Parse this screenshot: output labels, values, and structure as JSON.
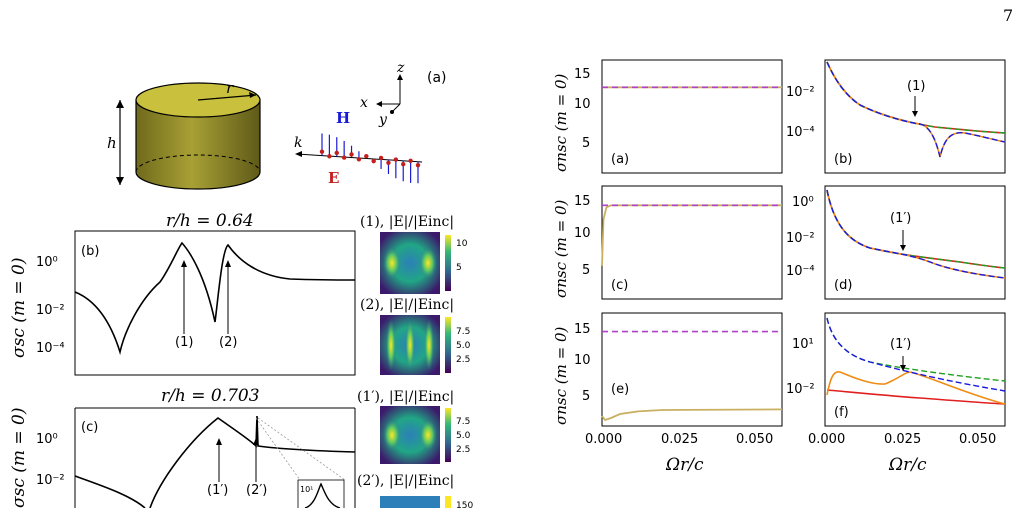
{
  "page": {
    "number": "7"
  },
  "figure_a": {
    "label": "(a)",
    "radius_label": "r",
    "height_label": "h",
    "axis_z": "z",
    "axis_x": "x",
    "axis_y": "y",
    "wave_k": "k",
    "field_H": "H",
    "field_E": "E",
    "colors": {
      "cylinder_top": "#c9c03d",
      "cylinder_side": "#8a8a2a",
      "H": "#1a1ad6",
      "E": "#c41e1e"
    }
  },
  "left_panels": {
    "panel_b_title": "r/h = 0.64",
    "panel_c_title": "r/h = 0.703",
    "ylabel": "σsc (m = 0)",
    "panel_b_label": "(b)",
    "panel_c_label": "(c)",
    "y_ticks": [
      "10⁰",
      "10⁻²",
      "10⁻⁴"
    ],
    "panel_b_markers": [
      "(1)",
      "(2)"
    ],
    "panel_c_markers": [
      "(1′)",
      "(2′)"
    ],
    "inset_tick": "10¹"
  },
  "field_maps": {
    "map1_title": "(1), |E|/|Einc|",
    "map2_title": "(2), |E|/|Einc|",
    "map1p_title": "(1′), |E|/|Einc|",
    "map2p_title": "(2′), |E|/|Einc|",
    "map1_ticks": [
      "10",
      "5"
    ],
    "map2_ticks": [
      "7.5",
      "5.0",
      "2.5"
    ],
    "map1p_ticks": [
      "7.5",
      "5.0",
      "2.5"
    ],
    "map2p_ticks": [
      "150"
    ]
  },
  "grid_panels": {
    "ylabel": "σnsc (m = 0)",
    "xlabel": "Ωr/c",
    "x_ticks": [
      "0.000",
      "0.025",
      "0.050"
    ],
    "linear_y_ticks": [
      "15",
      "10",
      "5"
    ],
    "panel_labels": [
      "(a)",
      "(b)",
      "(c)",
      "(d)",
      "(e)",
      "(f)"
    ],
    "marker_b": "(1)",
    "marker_d": "(1′)",
    "marker_f": "(1′)",
    "log_ticks_b": [
      "10⁻²",
      "10⁻⁴"
    ],
    "log_ticks_d": [
      "10⁰",
      "10⁻²",
      "10⁻⁴"
    ],
    "log_ticks_f": [
      "10¹",
      "10⁻²"
    ],
    "colors": {
      "purple": "#b040c8",
      "tan": "#c8b060",
      "red": "#e02020",
      "green": "#20a020",
      "orange": "#f08c14",
      "blue": "#1a1ae0"
    }
  },
  "chart_data": [
    {
      "type": "line",
      "panel": "(a)",
      "xlabel": "Ωr/c",
      "ylabel": "σnsc (m = 0)",
      "xlim": [
        0,
        0.06
      ],
      "ylim": [
        0,
        17
      ],
      "series": [
        {
          "values": [
            [
              0,
              12.9
            ],
            [
              0.06,
              12.9
            ]
          ],
          "color": "#c8b060"
        },
        {
          "values": [
            [
              0,
              12.9
            ],
            [
              0.06,
              12.9
            ]
          ],
          "color": "#b040c8",
          "dashed": true
        }
      ]
    },
    {
      "type": "line",
      "panel": "(c)",
      "xlabel": "Ωr/c",
      "ylabel": "σnsc (m = 0)",
      "xlim": [
        0,
        0.06
      ],
      "ylim": [
        0,
        17
      ],
      "series": [
        {
          "values": [
            [
              0,
              5
            ],
            [
              0.0005,
              12
            ],
            [
              0.0015,
              13.8
            ],
            [
              0.003,
              14.1
            ],
            [
              0.06,
              14.1
            ]
          ],
          "color": "#c8b060"
        },
        {
          "values": [
            [
              0,
              14.1
            ],
            [
              0.06,
              14.1
            ]
          ],
          "color": "#b040c8",
          "dashed": true
        }
      ]
    },
    {
      "type": "line",
      "panel": "(e)",
      "xlabel": "Ωr/c",
      "ylabel": "σnsc (m = 0)",
      "xlim": [
        0,
        0.06
      ],
      "ylim": [
        0,
        17
      ],
      "series": [
        {
          "values": [
            [
              0,
              1.5
            ],
            [
              0.001,
              0.9
            ],
            [
              0.003,
              1.2
            ],
            [
              0.006,
              1.8
            ],
            [
              0.012,
              2.2
            ],
            [
              0.02,
              2.4
            ],
            [
              0.06,
              2.5
            ]
          ],
          "color": "#c8b060"
        },
        {
          "values": [
            [
              0,
              14.2
            ],
            [
              0.06,
              14.2
            ]
          ],
          "color": "#b040c8",
          "dashed": true
        }
      ]
    }
  ]
}
